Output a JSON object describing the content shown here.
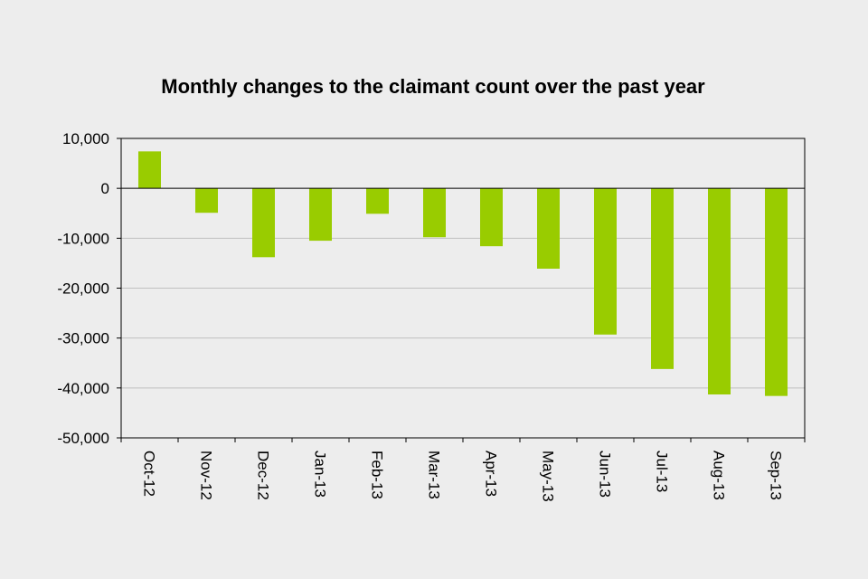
{
  "chart_data": {
    "type": "bar",
    "title": "Monthly changes to the claimant count over the past year",
    "xlabel": "",
    "ylabel": "",
    "categories": [
      "Oct-12",
      "Nov-12",
      "Dec-12",
      "Jan-13",
      "Feb-13",
      "Mar-13",
      "Apr-13",
      "May-13",
      "Jun-13",
      "Jul-13",
      "Aug-13",
      "Sep-13"
    ],
    "values": [
      7400,
      -4900,
      -13800,
      -10500,
      -5100,
      -9800,
      -11600,
      -16100,
      -29300,
      -36200,
      -41300,
      -41600
    ],
    "ylim": [
      -50000,
      10000
    ],
    "yticks": [
      10000,
      0,
      -10000,
      -20000,
      -30000,
      -40000,
      -50000
    ],
    "ytick_labels": [
      "10,000",
      "0",
      "-10,000",
      "-20,000",
      "-30,000",
      "-40,000",
      "-50,000"
    ],
    "grid": true,
    "bar_color": "#99cc00",
    "background_color": "#ededed",
    "gridline_color": "#c0c0c0",
    "axis_color": "#000000"
  }
}
